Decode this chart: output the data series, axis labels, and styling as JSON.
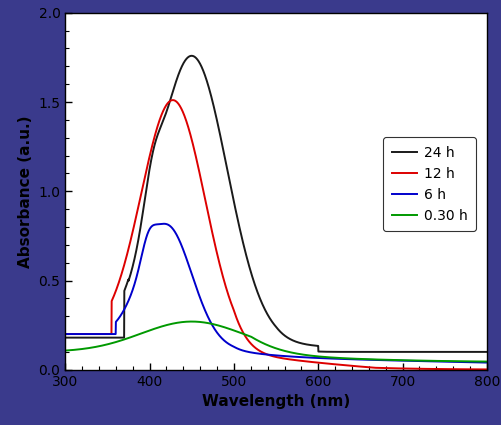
{
  "title": "",
  "xlabel": "Wavelength (nm)",
  "ylabel": "Absorbance (a.u.)",
  "xlim": [
    300,
    800
  ],
  "ylim": [
    0.0,
    2.0
  ],
  "yticks": [
    0.0,
    0.5,
    1.0,
    1.5,
    2.0
  ],
  "xticks": [
    300,
    400,
    500,
    600,
    700,
    800
  ],
  "legend": [
    "24 h",
    "12 h",
    "6 h",
    "0.30 h"
  ],
  "colors": [
    "#1a1a1a",
    "#dd0000",
    "#0000cc",
    "#009900"
  ],
  "background": "#ffffff",
  "border_color": "#3a3a8c",
  "linewidth": 1.4
}
